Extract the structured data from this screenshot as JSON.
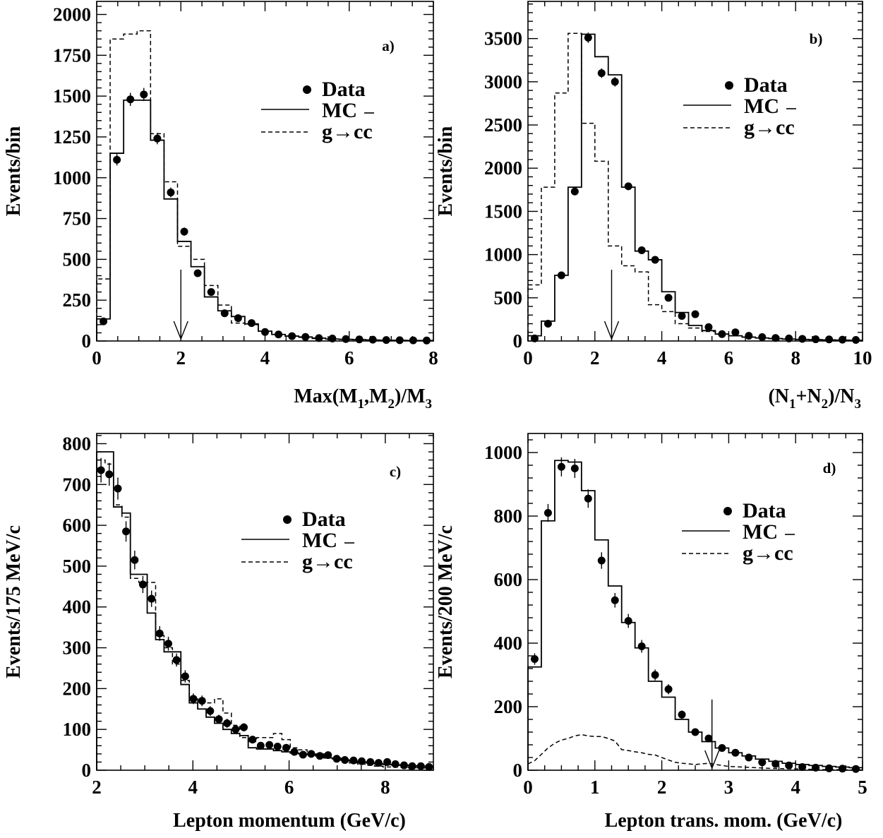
{
  "chart_data": [
    {
      "type": "histogram",
      "tag": "a)",
      "xlabel": "Max(M1,M2)/M3",
      "xlabel_parts": [
        "Max(M",
        "1",
        ",M",
        "2",
        ")/M",
        "3"
      ],
      "ylabel": "Events/bin",
      "xlim": [
        0,
        8
      ],
      "ylim": [
        0,
        2080
      ],
      "xticks": [
        0,
        2,
        4,
        6,
        8
      ],
      "yticks": [
        0,
        250,
        500,
        750,
        1000,
        1250,
        1500,
        1750,
        2000
      ],
      "cut_arrow_x": 2.0,
      "legend": {
        "data": "Data",
        "mc": "MC",
        "gcc": "g→cc"
      },
      "mc": {
        "edges": [
          0,
          0.32,
          0.64,
          0.96,
          1.28,
          1.6,
          1.92,
          2.24,
          2.56,
          2.88,
          3.2,
          3.52,
          3.84,
          4.16,
          4.48,
          4.8,
          5.12,
          5.44,
          5.76,
          6.08,
          6.4,
          6.72,
          7.04,
          7.36,
          7.68,
          8.0
        ],
        "values": [
          135,
          1150,
          1475,
          1475,
          1230,
          870,
          610,
          455,
          270,
          185,
          150,
          105,
          60,
          40,
          30,
          25,
          18,
          12,
          10,
          8,
          6,
          5,
          4,
          3,
          3
        ]
      },
      "gcc": {
        "edges": [
          0,
          0.32,
          0.64,
          0.96,
          1.28,
          1.6,
          1.92,
          2.24,
          2.56,
          2.88,
          3.2,
          3.52,
          3.84,
          4.16,
          4.48,
          4.8,
          5.12,
          5.44,
          5.76,
          6.08,
          6.4,
          6.72,
          7.04,
          7.36,
          7.68,
          8.0
        ],
        "values": [
          380,
          1850,
          1880,
          1900,
          1270,
          975,
          580,
          500,
          340,
          220,
          110,
          100,
          60,
          40,
          30,
          22,
          15,
          12,
          10,
          8,
          6,
          5,
          4,
          3,
          3
        ]
      },
      "data": {
        "x": [
          0.16,
          0.48,
          0.8,
          1.12,
          1.44,
          1.76,
          2.08,
          2.4,
          2.72,
          3.04,
          3.36,
          3.68,
          4.0,
          4.32,
          4.64,
          4.96,
          5.28,
          5.6,
          5.92,
          6.24,
          6.56,
          6.88,
          7.2,
          7.52,
          7.84
        ],
        "y": [
          120,
          1110,
          1480,
          1510,
          1240,
          910,
          670,
          415,
          300,
          170,
          140,
          110,
          55,
          40,
          30,
          25,
          18,
          15,
          12,
          10,
          8,
          6,
          5,
          4,
          3
        ],
        "err": [
          15,
          35,
          40,
          40,
          35,
          30,
          25,
          20,
          18,
          13,
          12,
          10,
          8,
          7,
          6,
          5,
          4,
          4,
          3,
          3,
          3,
          2,
          2,
          2,
          2
        ]
      }
    },
    {
      "type": "histogram",
      "tag": "b)",
      "xlabel": "(N1+N2)/N3",
      "xlabel_parts": [
        "(N",
        "1",
        "+N",
        "2",
        ")/N",
        "3"
      ],
      "ylabel": "Events/bin",
      "xlim": [
        0,
        10
      ],
      "ylim": [
        0,
        3930
      ],
      "xticks": [
        0,
        2,
        4,
        6,
        8,
        10
      ],
      "yticks": [
        0,
        500,
        1000,
        1500,
        2000,
        2500,
        3000,
        3500
      ],
      "cut_arrow_x": 2.5,
      "legend": {
        "data": "Data",
        "mc": "MC",
        "gcc": "g→cc"
      },
      "mc": {
        "edges": [
          0,
          0.4,
          0.8,
          1.2,
          1.6,
          2.0,
          2.4,
          2.8,
          3.2,
          3.6,
          4.0,
          4.4,
          4.8,
          5.2,
          5.6,
          6.0,
          6.4,
          6.8,
          7.2,
          7.6,
          8.0,
          8.4,
          8.8,
          9.2,
          9.6,
          10.0
        ],
        "values": [
          60,
          230,
          760,
          1780,
          3550,
          3290,
          3080,
          1780,
          1040,
          940,
          570,
          330,
          180,
          120,
          80,
          60,
          45,
          35,
          28,
          22,
          18,
          15,
          12,
          10,
          8
        ]
      },
      "gcc": {
        "edges": [
          0,
          0.4,
          0.8,
          1.2,
          1.6,
          2.0,
          2.4,
          2.8,
          3.2,
          3.6,
          4.0,
          4.4,
          4.8,
          5.2,
          5.6,
          6.0,
          6.4,
          6.8,
          7.2,
          7.6,
          8.0,
          8.4,
          8.8,
          9.2,
          9.6,
          10.0
        ],
        "values": [
          650,
          1780,
          2870,
          3560,
          2520,
          2080,
          1100,
          870,
          800,
          420,
          340,
          200,
          150,
          110,
          80,
          60,
          45,
          35,
          28,
          22,
          18,
          15,
          12,
          10,
          8
        ]
      },
      "data": {
        "x": [
          0.2,
          0.6,
          1.0,
          1.4,
          1.8,
          2.2,
          2.6,
          3.0,
          3.4,
          3.8,
          4.2,
          4.6,
          5.0,
          5.4,
          5.8,
          6.2,
          6.6,
          7.0,
          7.4,
          7.8,
          8.2,
          8.6,
          9.0,
          9.4,
          9.8
        ],
        "y": [
          30,
          200,
          760,
          1730,
          3510,
          3100,
          3000,
          1790,
          1050,
          940,
          500,
          290,
          310,
          160,
          80,
          100,
          60,
          45,
          35,
          30,
          25,
          20,
          18,
          15,
          12
        ],
        "err": [
          8,
          15,
          28,
          42,
          60,
          55,
          55,
          42,
          32,
          30,
          22,
          17,
          17,
          12,
          9,
          10,
          8,
          7,
          6,
          5,
          5,
          4,
          4,
          4,
          3
        ]
      }
    },
    {
      "type": "histogram",
      "tag": "c)",
      "xlabel": "Lepton momentum  (GeV/c)",
      "ylabel": "Events/175 MeV/c",
      "xlim": [
        2,
        9
      ],
      "ylim": [
        0,
        825
      ],
      "xticks": [
        2,
        4,
        6,
        8
      ],
      "yticks": [
        0,
        100,
        200,
        300,
        400,
        500,
        600,
        700,
        800
      ],
      "legend": {
        "data": "Data",
        "mc": "MC",
        "gcc": "g→cc"
      },
      "mc": {
        "edges": [
          2.0,
          2.175,
          2.35,
          2.525,
          2.7,
          2.875,
          3.05,
          3.225,
          3.4,
          3.575,
          3.75,
          3.925,
          4.1,
          4.275,
          4.45,
          4.625,
          4.8,
          4.975,
          5.15,
          5.325,
          5.5,
          5.675,
          5.85,
          6.025,
          6.2,
          6.375,
          6.55,
          6.725,
          6.9,
          7.075,
          7.25,
          7.425,
          7.6,
          7.775,
          7.95,
          8.125,
          8.3,
          8.475,
          8.65,
          8.825,
          9.0
        ],
        "values": [
          780,
          780,
          645,
          630,
          480,
          480,
          385,
          320,
          290,
          290,
          210,
          165,
          150,
          130,
          115,
          100,
          90,
          85,
          55,
          52,
          52,
          48,
          45,
          42,
          40,
          38,
          35,
          30,
          28,
          25,
          22,
          20,
          18,
          16,
          14,
          13,
          12,
          11,
          10,
          10
        ]
      },
      "gcc": {
        "edges": [
          2.0,
          2.175,
          2.35,
          2.525,
          2.7,
          2.875,
          3.05,
          3.225,
          3.4,
          3.575,
          3.75,
          3.925,
          4.1,
          4.275,
          4.45,
          4.625,
          4.8,
          4.975,
          5.15,
          5.325,
          5.5,
          5.675,
          5.85,
          6.025,
          6.2,
          6.375,
          6.55,
          6.725,
          6.9,
          7.075,
          7.25,
          7.425,
          7.6,
          7.775,
          7.95,
          8.125,
          8.3,
          8.475,
          8.65,
          8.825,
          9.0
        ],
        "values": [
          760,
          750,
          650,
          620,
          470,
          460,
          460,
          330,
          300,
          260,
          220,
          180,
          165,
          165,
          175,
          140,
          110,
          80,
          70,
          80,
          80,
          90,
          75,
          55,
          50,
          45,
          40,
          35,
          30,
          22,
          18,
          15,
          12,
          10,
          8,
          8,
          7,
          6,
          6,
          5
        ]
      },
      "data": {
        "x": [
          2.09,
          2.26,
          2.44,
          2.61,
          2.79,
          2.96,
          3.14,
          3.31,
          3.49,
          3.66,
          3.84,
          4.01,
          4.19,
          4.36,
          4.54,
          4.71,
          4.89,
          5.06,
          5.24,
          5.41,
          5.59,
          5.76,
          5.94,
          6.11,
          6.29,
          6.46,
          6.64,
          6.81,
          6.99,
          7.16,
          7.34,
          7.51,
          7.69,
          7.86,
          8.04,
          8.21,
          8.39,
          8.56,
          8.74,
          8.91
        ],
        "y": [
          735,
          725,
          690,
          585,
          515,
          455,
          420,
          335,
          310,
          270,
          230,
          175,
          170,
          145,
          125,
          115,
          100,
          105,
          75,
          60,
          62,
          58,
          55,
          45,
          38,
          40,
          35,
          37,
          28,
          25,
          24,
          22,
          20,
          18,
          20,
          15,
          12,
          10,
          10,
          8
        ],
        "err": [
          30,
          28,
          27,
          25,
          23,
          21,
          20,
          18,
          17,
          16,
          15,
          13,
          13,
          12,
          11,
          11,
          10,
          10,
          9,
          8,
          8,
          8,
          7,
          7,
          6,
          6,
          6,
          6,
          5,
          5,
          5,
          5,
          4,
          4,
          4,
          4,
          3,
          3,
          3,
          3
        ]
      }
    },
    {
      "type": "histogram",
      "tag": "d)",
      "xlabel": "Lepton trans. mom. (GeV/c)",
      "ylabel": "Events/200 MeV/c",
      "xlim": [
        0,
        5
      ],
      "ylim": [
        0,
        1060
      ],
      "xticks": [
        0,
        1,
        2,
        3,
        4,
        5
      ],
      "yticks": [
        0,
        200,
        400,
        600,
        800,
        1000
      ],
      "cut_arrow_x": 2.75,
      "legend": {
        "data": "Data",
        "mc": "MC",
        "gcc": "g→cc"
      },
      "mc": {
        "edges": [
          0,
          0.2,
          0.4,
          0.6,
          0.8,
          1.0,
          1.2,
          1.4,
          1.6,
          1.8,
          2.0,
          2.2,
          2.4,
          2.6,
          2.8,
          3.0,
          3.2,
          3.4,
          3.6,
          3.8,
          4.0,
          4.2,
          4.4,
          4.6,
          4.8,
          5.0
        ],
        "values": [
          325,
          785,
          975,
          970,
          880,
          725,
          580,
          465,
          385,
          280,
          230,
          160,
          120,
          90,
          70,
          55,
          45,
          35,
          28,
          22,
          18,
          15,
          12,
          10,
          8
        ]
      },
      "gcc_curve": {
        "x": [
          0,
          0.1,
          0.2,
          0.3,
          0.4,
          0.5,
          0.6,
          0.7,
          0.8,
          0.9,
          1.0,
          1.1,
          1.2,
          1.3,
          1.4,
          1.5,
          1.6,
          1.7,
          1.8,
          1.9,
          2.0,
          2.1,
          2.2,
          2.3,
          2.4,
          2.5,
          2.6,
          2.7,
          2.8,
          2.9,
          3.0,
          3.2,
          3.4,
          3.6,
          3.8,
          4.0,
          4.2,
          4.4,
          4.6,
          4.8,
          5.0
        ],
        "y": [
          20,
          30,
          50,
          70,
          85,
          95,
          100,
          108,
          112,
          108,
          106,
          106,
          100,
          92,
          65,
          62,
          58,
          55,
          50,
          48,
          40,
          32,
          25,
          22,
          20,
          18,
          20,
          22,
          18,
          15,
          12,
          10,
          8,
          6,
          5,
          4,
          3,
          2,
          2,
          1,
          1
        ]
      },
      "data": {
        "x": [
          0.1,
          0.3,
          0.5,
          0.7,
          0.9,
          1.1,
          1.3,
          1.5,
          1.7,
          1.9,
          2.1,
          2.3,
          2.5,
          2.7,
          2.9,
          3.1,
          3.3,
          3.5,
          3.7,
          3.9,
          4.1,
          4.3,
          4.5,
          4.7,
          4.9
        ],
        "y": [
          350,
          810,
          955,
          950,
          855,
          660,
          535,
          470,
          390,
          300,
          255,
          175,
          120,
          100,
          70,
          55,
          40,
          25,
          20,
          15,
          10,
          8,
          6,
          5,
          4
        ],
        "err": [
          18,
          28,
          30,
          30,
          29,
          26,
          23,
          22,
          20,
          17,
          16,
          13,
          11,
          10,
          8,
          7,
          6,
          5,
          4,
          4,
          3,
          3,
          2,
          2,
          2
        ]
      }
    }
  ]
}
